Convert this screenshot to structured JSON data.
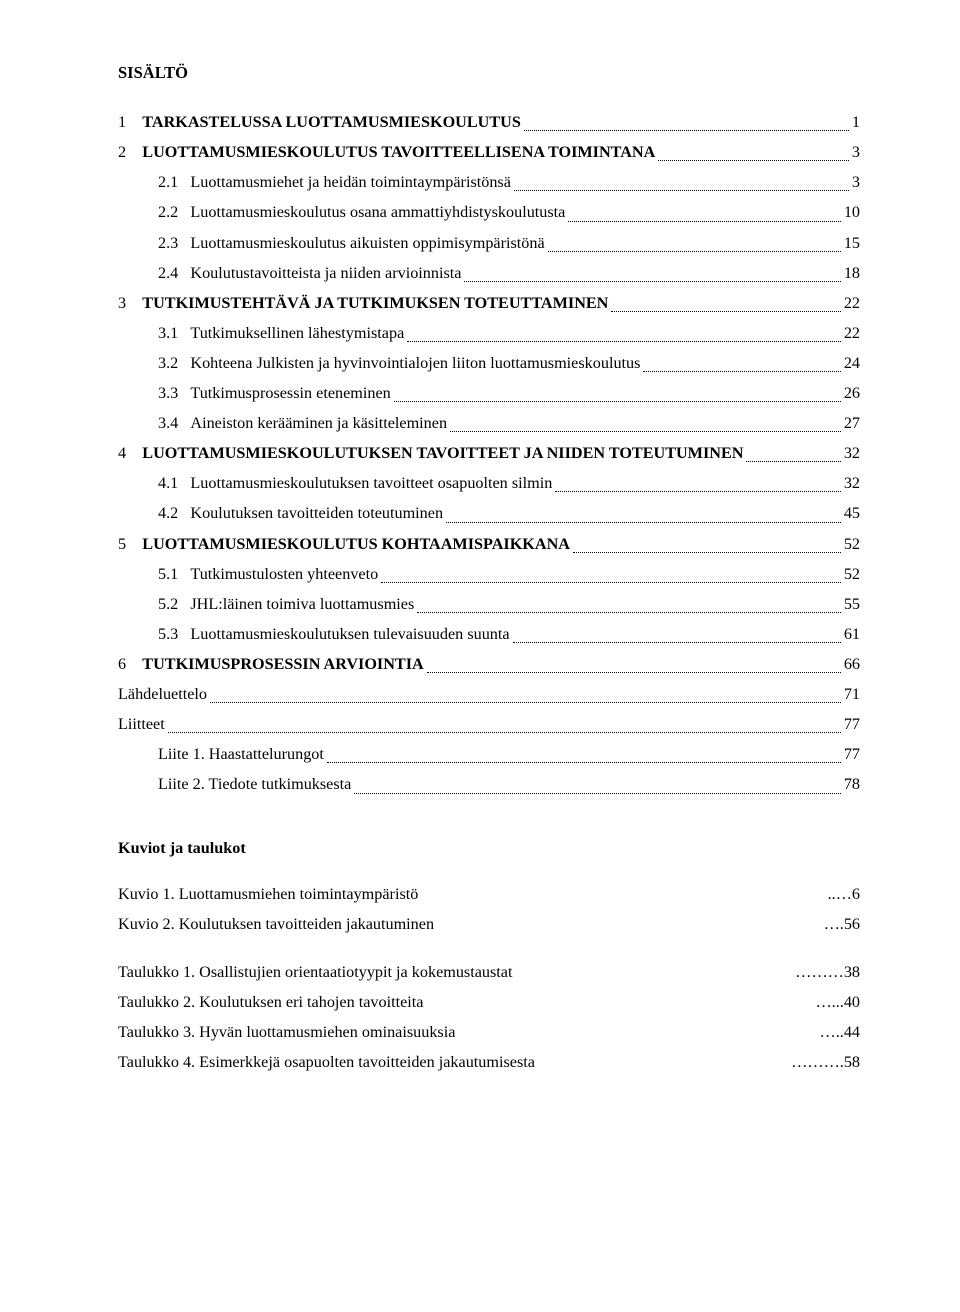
{
  "title": "SISÄLTÖ",
  "toc": [
    {
      "level": 1,
      "num": "1",
      "label": "TARKASTELUSSA LUOTTAMUSMIESKOULUTUS",
      "page": "1",
      "sc": true,
      "leader": true
    },
    {
      "level": 1,
      "num": "2",
      "label": "LUOTTAMUSMIESKOULUTUS TAVOITTEELLISENA TOIMINTANA",
      "page": "3",
      "sc": true,
      "leader": true
    },
    {
      "level": 2,
      "num": "2.1",
      "label": "Luottamusmiehet ja heidän toimintaympäristönsä",
      "page": "3",
      "sc": false,
      "leader": true
    },
    {
      "level": 2,
      "num": "2.2",
      "label": "Luottamusmieskoulutus osana ammattiyhdistyskoulutusta",
      "page": "10",
      "sc": false,
      "leader": true
    },
    {
      "level": 2,
      "num": "2.3",
      "label": "Luottamusmieskoulutus aikuisten oppimisympäristönä",
      "page": "15",
      "sc": false,
      "leader": true
    },
    {
      "level": 2,
      "num": "2.4",
      "label": "Koulutustavoitteista ja niiden arvioinnista",
      "page": "18",
      "sc": false,
      "leader": true
    },
    {
      "level": 1,
      "num": "3",
      "label": "TUTKIMUSTEHTÄVÄ JA TUTKIMUKSEN TOTEUTTAMINEN",
      "page": "22",
      "sc": true,
      "leader": true
    },
    {
      "level": 2,
      "num": "3.1",
      "label": "Tutkimuksellinen lähestymistapa",
      "page": "22",
      "sc": false,
      "leader": true
    },
    {
      "level": 2,
      "num": "3.2",
      "label": "Kohteena Julkisten ja hyvinvointialojen liiton luottamusmieskoulutus",
      "page": "24",
      "sc": false,
      "leader": true
    },
    {
      "level": 2,
      "num": "3.3",
      "label": "Tutkimusprosessin eteneminen",
      "page": "26",
      "sc": false,
      "leader": true
    },
    {
      "level": 2,
      "num": "3.4",
      "label": "Aineiston kerääminen ja käsitteleminen",
      "page": "27",
      "sc": false,
      "leader": true
    },
    {
      "level": 1,
      "num": "4",
      "label": "LUOTTAMUSMIESKOULUTUKSEN TAVOITTEET JA NIIDEN TOTEUTUMINEN",
      "page": "32",
      "sc": true,
      "leader": true
    },
    {
      "level": 2,
      "num": "4.1",
      "label": "Luottamusmieskoulutuksen tavoitteet osapuolten silmin",
      "page": "32",
      "sc": false,
      "leader": true
    },
    {
      "level": 2,
      "num": "4.2",
      "label": "Koulutuksen tavoitteiden toteutuminen",
      "page": "45",
      "sc": false,
      "leader": true
    },
    {
      "level": 1,
      "num": "5",
      "label": "LUOTTAMUSMIESKOULUTUS KOHTAAMISPAIKKANA",
      "page": "52",
      "sc": true,
      "leader": true
    },
    {
      "level": 2,
      "num": "5.1",
      "label": "Tutkimustulosten yhteenveto",
      "page": "52",
      "sc": false,
      "leader": true
    },
    {
      "level": 2,
      "num": "5.2",
      "label": "JHL:läinen toimiva luottamusmies",
      "page": "55",
      "sc": false,
      "leader": true
    },
    {
      "level": 2,
      "num": "5.3",
      "label": "Luottamusmieskoulutuksen tulevaisuuden suunta",
      "page": "61",
      "sc": false,
      "leader": true
    },
    {
      "level": 1,
      "num": "6",
      "label": "TUTKIMUSPROSESSIN ARVIOINTIA",
      "page": "66",
      "sc": true,
      "leader": true
    },
    {
      "level": 0,
      "num": "",
      "label": "Lähdeluettelo",
      "page": "71",
      "sc": false,
      "leader": true
    },
    {
      "level": 0,
      "num": "",
      "label": "Liitteet",
      "page": "77",
      "sc": false,
      "leader": true
    },
    {
      "level": 2,
      "num": "",
      "label": "Liite 1. Haastattelurungot",
      "page": "77",
      "sc": false,
      "leader": true
    },
    {
      "level": 2,
      "num": "",
      "label": "Liite 2. Tiedote tutkimuksesta",
      "page": "78",
      "sc": false,
      "leader": true
    }
  ],
  "figures_heading": "Kuviot ja taulukot",
  "figures": [
    {
      "label": "Kuvio 1. Luottamusmiehen toimintaympäristö",
      "page": "6",
      "leader": "ellipsis",
      "trail": "..…"
    },
    {
      "label": "Kuvio 2. Koulutuksen tavoitteiden jakautuminen",
      "page": "56",
      "leader": "ellipsis",
      "trail": "…."
    }
  ],
  "tables": [
    {
      "label": "Taulukko 1. Osallistujien orientaatiotyypit ja kokemustaustat",
      "page": "38",
      "leader": "ellipsis",
      "trail": "………"
    },
    {
      "label": "Taulukko 2. Koulutuksen eri tahojen tavoitteita",
      "page": "40",
      "leader": "ellipsis",
      "trail": "…..."
    },
    {
      "label": "Taulukko 3. Hyvän luottamusmiehen ominaisuuksia",
      "page": "44",
      "leader": "ellipsis",
      "trail": "….."
    },
    {
      "label": "Taulukko 4. Esimerkkejä osapuolten tavoitteiden jakautumisesta",
      "page": "58",
      "leader": "ellipsis",
      "trail": "………."
    }
  ]
}
